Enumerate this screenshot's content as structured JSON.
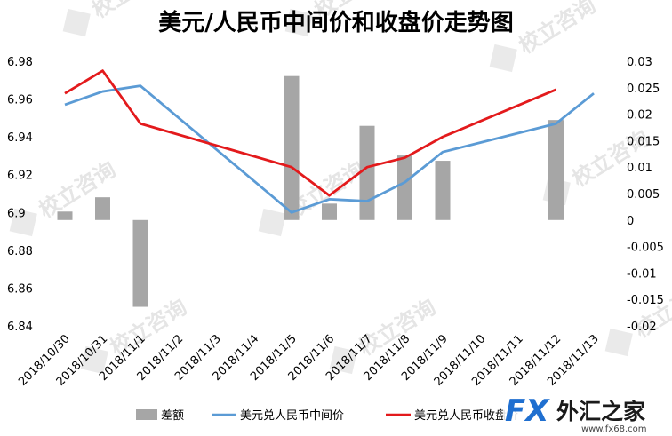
{
  "chart_data": {
    "type": "bar",
    "title": "美元/人民币中间价和收盘价走势图",
    "categories": [
      "2018/10/30",
      "2018/10/31",
      "2018/11/1",
      "2018/11/2",
      "2018/11/3",
      "2018/11/4",
      "2018/11/5",
      "2018/11/6",
      "2018/11/7",
      "2018/11/8",
      "2018/11/9",
      "2018/11/10",
      "2018/11/11",
      "2018/11/12",
      "2018/11/13"
    ],
    "y_left": {
      "ticks": [
        "6.98",
        "6.96",
        "6.94",
        "6.92",
        "6.9",
        "6.88",
        "6.86",
        "6.84"
      ],
      "ylim": [
        6.84,
        6.98
      ]
    },
    "y_right": {
      "ticks": [
        "0.03",
        "0.025",
        "0.02",
        "0.015",
        "0.01",
        "0.005",
        "0",
        "-0.005",
        "-0.01",
        "-0.015",
        "-0.02"
      ],
      "ylim": [
        -0.02,
        0.03
      ]
    },
    "series": [
      {
        "name": "差额",
        "type": "bar",
        "axis": "right",
        "color": "#a6a6a6",
        "values": [
          0.0016,
          0.0043,
          -0.0164,
          null,
          null,
          null,
          0.0272,
          0.0031,
          0.0178,
          0.0122,
          0.0112,
          null,
          null,
          0.0189,
          null
        ]
      },
      {
        "name": "美元兑人民币中间价",
        "type": "line",
        "axis": "left",
        "color": "#5b9bd5",
        "values": [
          6.957,
          6.964,
          6.967,
          null,
          null,
          null,
          6.9,
          6.907,
          6.906,
          6.916,
          6.932,
          null,
          null,
          6.947,
          6.963
        ]
      },
      {
        "name": "美元兑人民币收盘价",
        "type": "line",
        "axis": "left",
        "color": "#e31a1c",
        "values": [
          6.963,
          6.975,
          6.947,
          null,
          null,
          null,
          6.924,
          6.909,
          6.924,
          6.929,
          6.94,
          null,
          null,
          6.965,
          null
        ]
      }
    ],
    "legend_position": "bottom",
    "grid": false
  },
  "legend": {
    "bar_label": "差额",
    "line1_label": "美元兑人民币中间价",
    "line2_label": "美元兑人民币收盘价"
  },
  "watermark": {
    "text": "校立咨询"
  },
  "logo": {
    "brand_fx": "FX",
    "brand_cn": "外汇之家",
    "url": "www.fx68.com"
  },
  "colors": {
    "bar": "#a6a6a6",
    "mid_line": "#5b9bd5",
    "close_line": "#e31a1c"
  }
}
